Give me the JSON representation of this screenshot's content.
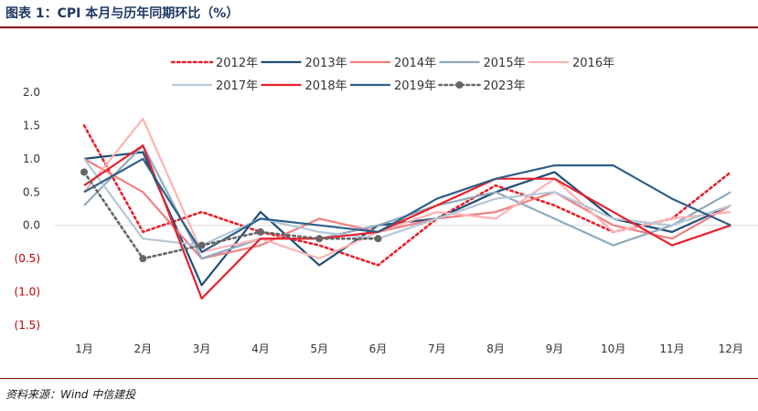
{
  "header": {
    "title": "图表 1：CPI 本月与历年同期环比（%）"
  },
  "footer": {
    "source": "资料来源：Wind    中信建投"
  },
  "chart_data": {
    "type": "line",
    "title": "CPI 本月与历年同期环比（%）",
    "xlabel": "",
    "ylabel": "",
    "categories": [
      "1月",
      "2月",
      "3月",
      "4月",
      "5月",
      "6月",
      "7月",
      "8月",
      "9月",
      "10月",
      "11月",
      "12月"
    ],
    "ylim": [
      -1.5,
      2.0
    ],
    "yticks": [
      2.0,
      1.5,
      1.0,
      0.5,
      0.0,
      -0.5,
      -1.0,
      -1.5
    ],
    "ytick_labels": [
      "2.0",
      "1.5",
      "1.0",
      "0.5",
      "0.0",
      "(0.5)",
      "(1.0)",
      "(1.5)"
    ],
    "ytick_colors": [
      "#333333",
      "#333333",
      "#333333",
      "#333333",
      "#333333",
      "#c00000",
      "#c00000",
      "#c00000"
    ],
    "grid": false,
    "legend_placement": "top",
    "series": [
      {
        "name": "2012年",
        "color": "#e8202a",
        "style": "dotted",
        "marker": false,
        "values": [
          1.5,
          -0.1,
          0.2,
          -0.1,
          -0.3,
          -0.6,
          0.1,
          0.6,
          0.3,
          -0.1,
          0.1,
          0.8
        ]
      },
      {
        "name": "2013年",
        "color": "#1f4e79",
        "style": "solid",
        "marker": false,
        "values": [
          1.0,
          1.1,
          -0.9,
          0.2,
          -0.6,
          0.0,
          0.1,
          0.5,
          0.8,
          0.1,
          -0.1,
          0.3
        ]
      },
      {
        "name": "2014年",
        "color": "#f08080",
        "style": "solid",
        "marker": false,
        "values": [
          1.0,
          0.5,
          -0.5,
          -0.3,
          0.1,
          -0.1,
          0.1,
          0.2,
          0.5,
          0.0,
          -0.2,
          0.3
        ]
      },
      {
        "name": "2015年",
        "color": "#8faabd",
        "style": "solid",
        "marker": false,
        "values": [
          0.3,
          1.2,
          -0.5,
          -0.2,
          -0.2,
          0.0,
          0.3,
          0.5,
          0.1,
          -0.3,
          0.0,
          0.5
        ]
      },
      {
        "name": "2016年",
        "color": "#ffb3b3",
        "style": "solid",
        "marker": false,
        "values": [
          0.5,
          1.6,
          -0.4,
          -0.2,
          -0.5,
          -0.1,
          0.2,
          0.1,
          0.7,
          -0.1,
          0.1,
          0.2
        ]
      },
      {
        "name": "2017年",
        "color": "#b4c8d8",
        "style": "solid",
        "marker": false,
        "values": [
          1.0,
          -0.2,
          -0.3,
          0.1,
          -0.1,
          -0.2,
          0.1,
          0.4,
          0.5,
          0.1,
          0.0,
          0.3
        ]
      },
      {
        "name": "2018年",
        "color": "#e8202a",
        "style": "solid",
        "marker": false,
        "values": [
          0.6,
          1.2,
          -1.1,
          -0.2,
          -0.2,
          -0.1,
          0.3,
          0.7,
          0.7,
          0.2,
          -0.3,
          0.0
        ]
      },
      {
        "name": "2019年",
        "color": "#2e5f8a",
        "style": "solid",
        "marker": false,
        "values": [
          0.5,
          1.0,
          -0.4,
          0.1,
          0.0,
          -0.1,
          0.4,
          0.7,
          0.9,
          0.9,
          0.4,
          0.0
        ]
      },
      {
        "name": "2023年",
        "color": "#666666",
        "style": "dotted",
        "marker": true,
        "values": [
          0.8,
          -0.5,
          -0.3,
          -0.1,
          -0.2,
          -0.2,
          null,
          null,
          null,
          null,
          null,
          null
        ]
      }
    ]
  }
}
